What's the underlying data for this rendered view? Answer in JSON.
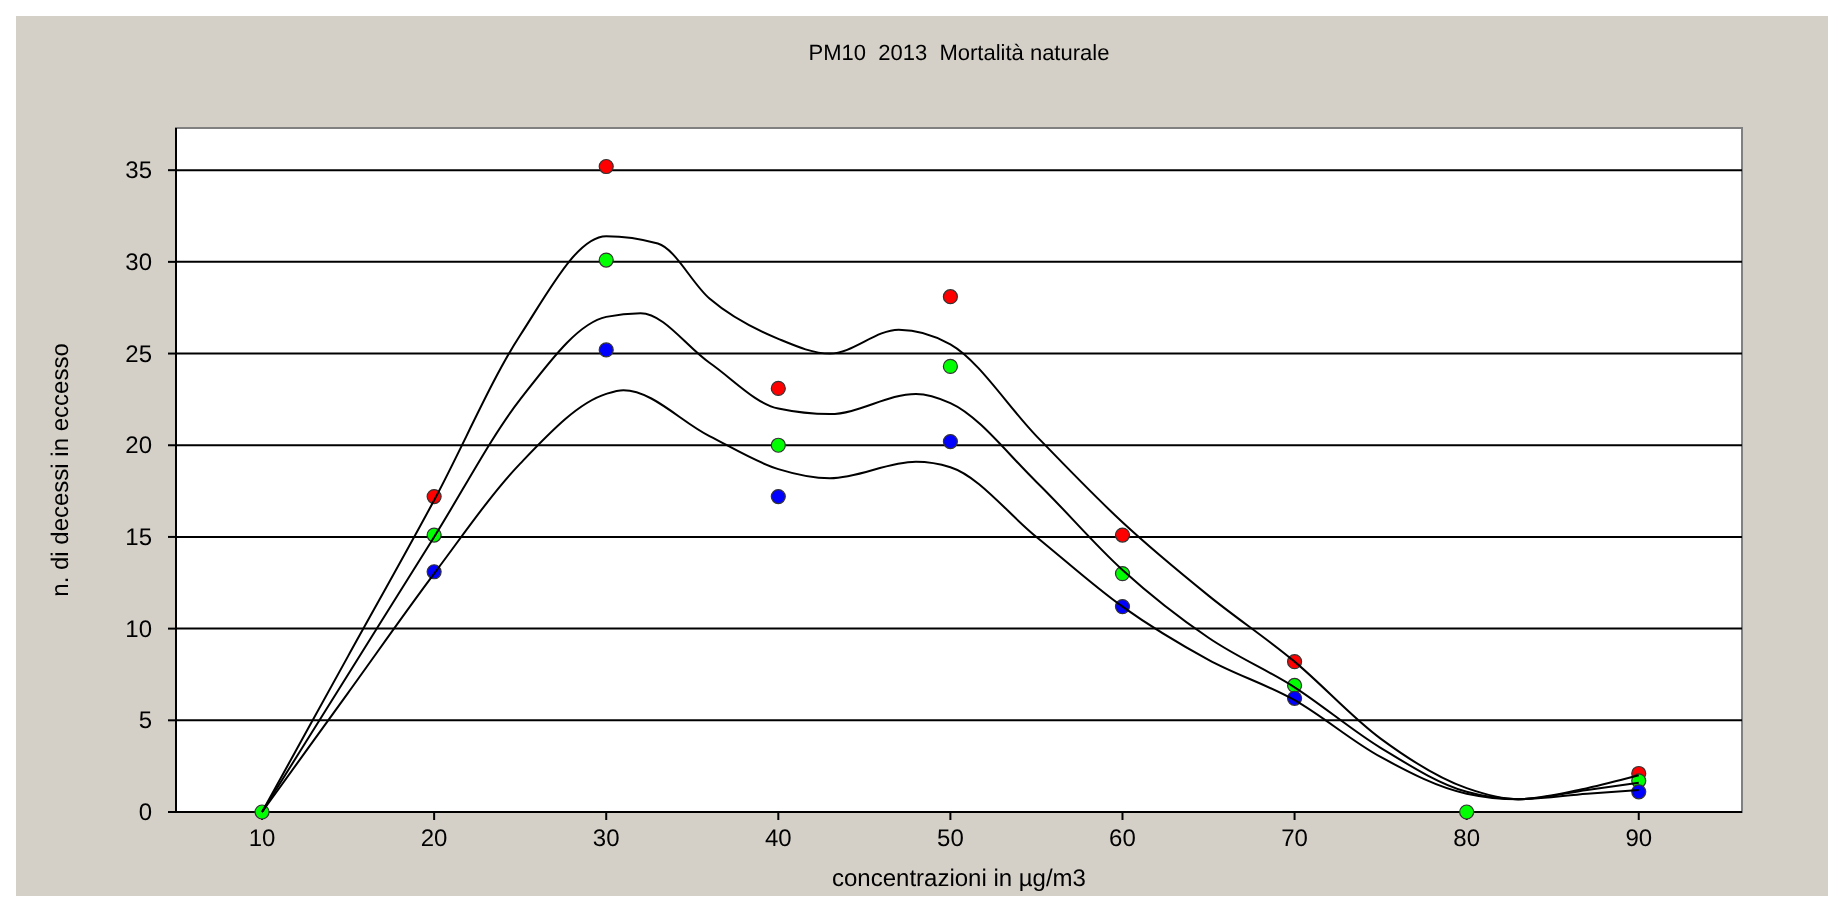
{
  "chart_data": {
    "type": "scatter",
    "title": "PM10  2013  Mortalità naturale",
    "xlabel": "concentrazioni in µg/m3",
    "ylabel": "n. di decessi in eccesso",
    "x": [
      10,
      20,
      30,
      40,
      50,
      60,
      70,
      80,
      90
    ],
    "xlim": [
      5,
      96
    ],
    "xticks": [
      10,
      20,
      30,
      40,
      50,
      60,
      70,
      80,
      90
    ],
    "ylim": [
      0,
      37.3
    ],
    "yticks": [
      0,
      5,
      10,
      15,
      20,
      25,
      30,
      35
    ],
    "grid": "y",
    "marker": "circle",
    "series": [
      {
        "color": "#ff0000",
        "values": [
          null,
          17.2,
          35.2,
          23.1,
          28.1,
          15.1,
          8.2,
          null,
          2.1
        ]
      },
      {
        "color": "#00ff00",
        "values": [
          0,
          15.1,
          30.1,
          20,
          24.3,
          13,
          6.9,
          0,
          1.7
        ]
      },
      {
        "color": "#0000ff",
        "values": [
          null,
          13.1,
          25.2,
          17.2,
          20.2,
          11.2,
          6.2,
          null,
          1.1
        ]
      },
      {
        "type": "line",
        "marker": "none",
        "color": "#000000",
        "x": [
          10,
          15,
          20,
          25,
          30,
          33,
          36,
          40,
          43,
          47,
          50,
          55,
          60,
          65,
          70,
          75,
          80,
          83,
          87,
          90
        ],
        "values": [
          0,
          8.5,
          17,
          26,
          31.4,
          31,
          28,
          25.8,
          25,
          26.3,
          25.5,
          20.5,
          15.8,
          11.8,
          8.2,
          4,
          1.3,
          0.7,
          1.3,
          2
        ]
      },
      {
        "type": "line",
        "marker": "none",
        "color": "#000000",
        "x": [
          10,
          15,
          20,
          25,
          30,
          32,
          36,
          40,
          43,
          48,
          50,
          55,
          60,
          65,
          70,
          75,
          80,
          83,
          87,
          90
        ],
        "values": [
          0,
          7.5,
          15,
          22.5,
          27,
          27.2,
          24.5,
          22,
          21.7,
          22.8,
          22.3,
          18,
          13.2,
          9.5,
          6.8,
          3.5,
          1.1,
          0.7,
          1.2,
          1.6
        ]
      },
      {
        "type": "line",
        "marker": "none",
        "color": "#000000",
        "x": [
          10,
          15,
          20,
          25,
          30,
          31,
          36,
          40,
          43,
          48,
          50,
          55,
          60,
          65,
          70,
          75,
          80,
          83,
          87,
          90
        ],
        "values": [
          0,
          6.5,
          13,
          19,
          22.8,
          23,
          20.5,
          18.7,
          18.2,
          19.1,
          18.8,
          15,
          11.2,
          8.3,
          6.1,
          3,
          1,
          0.7,
          1,
          1.2
        ]
      }
    ]
  }
}
